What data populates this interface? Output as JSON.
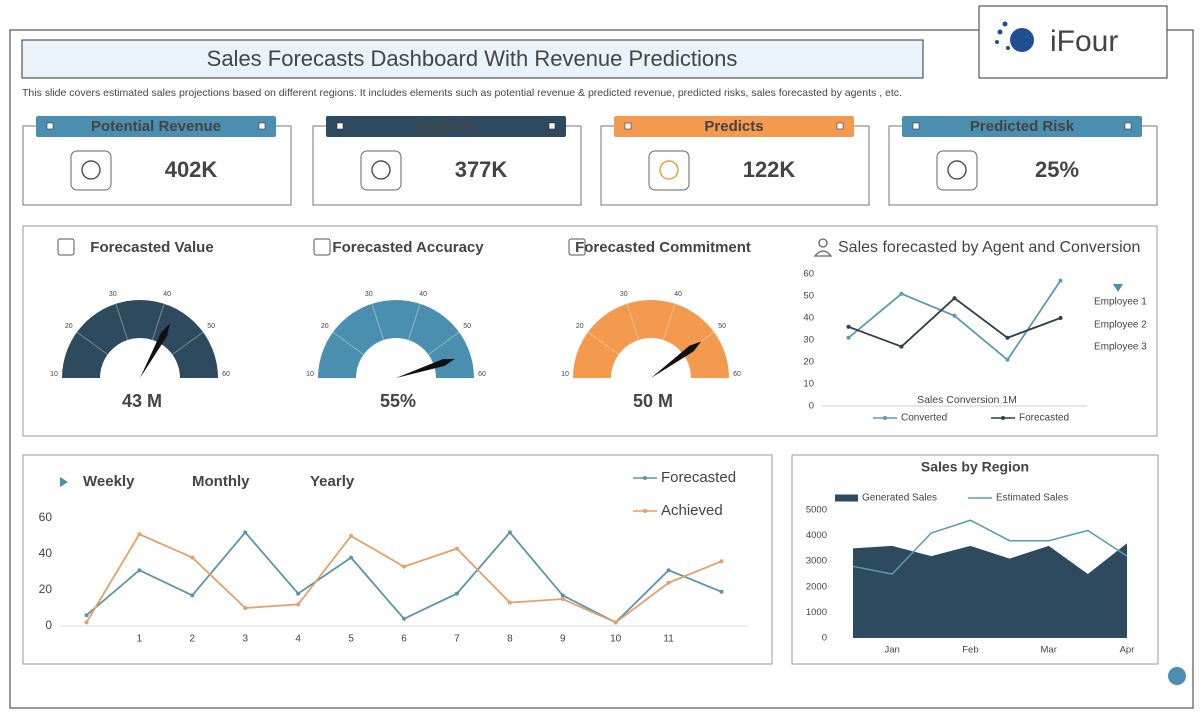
{
  "header": {
    "title": "Sales Forecasts Dashboard With Revenue Predictions",
    "subtitle": "This slide covers estimated sales projections based on different regions. It includes elements such as potential revenue & predicted revenue, predicted risks, sales forecasted by agents , etc.",
    "logo": "iFour"
  },
  "kpis": [
    {
      "label": "Potential Revenue",
      "value": "402K",
      "color": "#4b8fb0"
    },
    {
      "label": "Predicts",
      "value": "377K",
      "color": "#2d4a5e"
    },
    {
      "label": "Predicts",
      "value": "122K",
      "color": "#f39a4f"
    },
    {
      "label": "Predicted Risk",
      "value": "25%",
      "color": "#4b8fb0"
    }
  ],
  "chart_data": [
    {
      "type": "gauge",
      "title": "Forecasted Value",
      "value": 43,
      "value_label": "43 M",
      "range": [
        10,
        60
      ],
      "ticks": [
        10,
        20,
        30,
        40,
        50,
        60
      ],
      "color": "#2d4a5e"
    },
    {
      "type": "gauge",
      "title": "Forecasted Accuracy",
      "value": 55,
      "value_label": "55%",
      "range": [
        10,
        60
      ],
      "ticks": [
        10,
        20,
        30,
        40,
        50,
        60
      ],
      "color": "#4b8fb0"
    },
    {
      "type": "gauge",
      "title": "Forecasted Commitment",
      "value": 50,
      "value_label": "50 M",
      "range": [
        10,
        60
      ],
      "ticks": [
        10,
        20,
        30,
        40,
        50,
        60
      ],
      "color": "#f39a4f"
    },
    {
      "type": "line",
      "title": "Sales forecasted by Agent and Conversion",
      "x_label": "Sales Conversion 1M",
      "categories": [
        null,
        null,
        null,
        null,
        null
      ],
      "series": [
        {
          "name": "Converted",
          "color": "#5b9bb5",
          "values": [
            31,
            51,
            41,
            21,
            57
          ]
        },
        {
          "name": "Forecasted",
          "color": "#2d3e4e",
          "values": [
            36,
            27,
            49,
            31,
            40
          ]
        }
      ],
      "annotations": [
        "Employee 1",
        "Employee 2",
        "Employee 3"
      ],
      "ylim": [
        0,
        60
      ],
      "yticks": [
        0,
        10,
        20,
        30,
        40,
        50,
        60
      ],
      "legend": "bottom"
    },
    {
      "type": "line",
      "tabs": [
        "Weekly",
        "Monthly",
        "Yearly"
      ],
      "x": [
        0,
        1,
        2,
        3,
        4,
        5,
        6,
        7,
        8,
        9,
        10,
        11,
        12
      ],
      "xlim": [
        -0.5,
        12.5
      ],
      "xticks": [
        1,
        2,
        3,
        4,
        5,
        6,
        7,
        8,
        9,
        10,
        11
      ],
      "series": [
        {
          "name": "Forecasted",
          "color": "#5b95ab",
          "values": [
            6,
            31,
            17,
            52,
            18,
            38,
            4,
            18,
            52,
            17,
            2,
            31,
            19
          ]
        },
        {
          "name": "Achieved",
          "color": "#e3a068",
          "values": [
            2,
            51,
            38,
            10,
            12,
            50,
            33,
            43,
            13,
            15,
            2,
            24,
            36
          ]
        }
      ],
      "ylim": [
        0,
        60
      ],
      "yticks": [
        0,
        20,
        40,
        60
      ],
      "legend": "top-right"
    },
    {
      "type": "area",
      "title": "Sales by Region",
      "categories": [
        null,
        "Jan",
        null,
        "Feb",
        null,
        "Mar",
        null,
        "Apr"
      ],
      "series": [
        {
          "name": "Generated Sales",
          "color": "#2d4a5e",
          "style": "area",
          "values": [
            3500,
            3600,
            3200,
            3600,
            3100,
            3600,
            2500,
            3700
          ]
        },
        {
          "name": "Estimated Sales",
          "color": "#5b9bb5",
          "style": "line",
          "values": [
            2800,
            2500,
            4100,
            4600,
            3800,
            3800,
            4200,
            3200
          ]
        }
      ],
      "ylim": [
        0,
        5000
      ],
      "yticks": [
        0,
        1000,
        2000,
        3000,
        4000,
        5000
      ],
      "legend": "top"
    }
  ]
}
